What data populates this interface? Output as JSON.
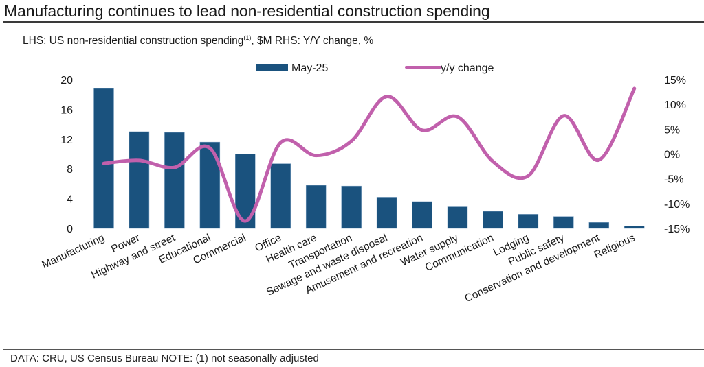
{
  "header": {
    "title": "Manufacturing continues to lead non-residential construction spending",
    "subtitle_pre": "LHS: US non-residential construction spending",
    "subtitle_sup": "(1)",
    "subtitle_post": ", $M RHS: Y/Y change, %"
  },
  "footer": {
    "text": "DATA:  CRU, US Census Bureau   NOTE: (1) not seasonally adjusted"
  },
  "colors": {
    "bar": "#1a527e",
    "line": "#c160ac"
  },
  "chart_data": {
    "type": "bar",
    "title": "Manufacturing continues to lead non-residential construction spending",
    "xlabel": "",
    "ylabel": "US non-residential construction spending, $M",
    "y2label": "Y/Y change, %",
    "categories": [
      "Manufacturing",
      "Power",
      "Highway and street",
      "Educational",
      "Commercial",
      "Office",
      "Health care",
      "Transportation",
      "Sewage and waste disposal",
      "Amusement and recreation",
      "Water supply",
      "Communication",
      "Lodging",
      "Public safety",
      "Conservation and development",
      "Religious"
    ],
    "series": [
      {
        "name": "May-25",
        "type": "bar",
        "axis": "left",
        "values": [
          18.8,
          13.0,
          12.9,
          11.6,
          10.0,
          8.7,
          5.8,
          5.7,
          4.2,
          3.6,
          2.9,
          2.3,
          1.9,
          1.6,
          0.8,
          0.3
        ]
      },
      {
        "name": "y/y change",
        "type": "line",
        "axis": "right",
        "values": [
          -1.9,
          -1.3,
          -2.7,
          1.2,
          -13.5,
          2.3,
          -0.3,
          2.6,
          11.6,
          4.8,
          7.5,
          -1.5,
          -4.4,
          7.7,
          -1.2,
          13.2
        ]
      }
    ],
    "ylim": [
      0,
      20
    ],
    "yticks": [
      0,
      4,
      8,
      12,
      16,
      20
    ],
    "ytick_labels": [
      "0",
      "4",
      "8",
      "12",
      "16",
      "20"
    ],
    "y2lim": [
      -15,
      15
    ],
    "y2ticks": [
      -15,
      -10,
      -5,
      0,
      5,
      10,
      15
    ],
    "y2tick_labels": [
      "-15%",
      "-10%",
      "-5%",
      "0%",
      "5%",
      "10%",
      "15%"
    ],
    "legend": [
      "May-25",
      "y/y change"
    ],
    "legend_position": "top-center",
    "grid": false
  }
}
